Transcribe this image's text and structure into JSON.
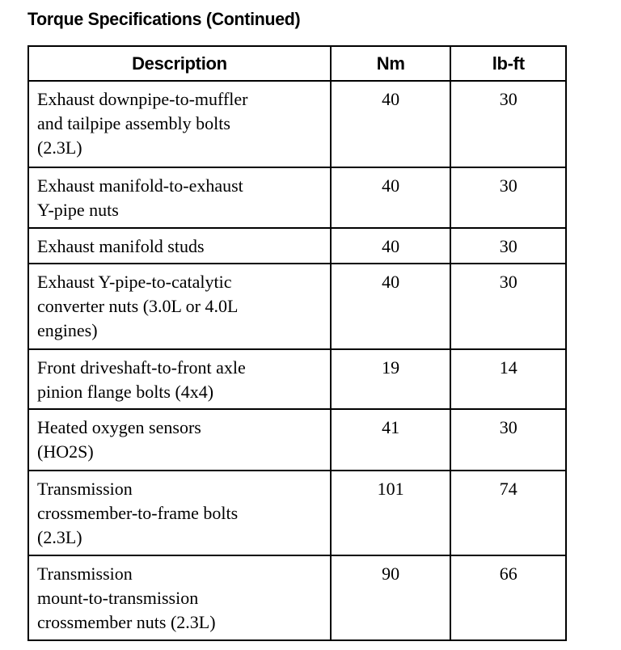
{
  "title": "Torque Specifications (Continued)",
  "table": {
    "headers": [
      "Description",
      "Nm",
      "lb-ft"
    ],
    "rows": [
      {
        "description": [
          "Exhaust downpipe-to-muffler",
          "and tailpipe assembly bolts",
          "(2.3L)"
        ],
        "nm": "40",
        "lbft": "30"
      },
      {
        "description": [
          "Exhaust manifold-to-exhaust",
          "Y-pipe nuts"
        ],
        "nm": "40",
        "lbft": "30"
      },
      {
        "description": [
          "Exhaust manifold studs"
        ],
        "nm": "40",
        "lbft": "30"
      },
      {
        "description": [
          "Exhaust Y-pipe-to-catalytic",
          "converter nuts (3.0L or 4.0L",
          "engines)"
        ],
        "nm": "40",
        "lbft": "30"
      },
      {
        "description": [
          "Front driveshaft-to-front axle",
          "pinion flange bolts (4x4)"
        ],
        "nm": "19",
        "lbft": "14"
      },
      {
        "description": [
          "Heated oxygen sensors",
          "(HO2S)"
        ],
        "nm": "41",
        "lbft": "30"
      },
      {
        "description": [
          "Transmission",
          "crossmember-to-frame bolts",
          "(2.3L)"
        ],
        "nm": "101",
        "lbft": "74"
      },
      {
        "description": [
          "Transmission",
          "mount-to-transmission",
          "crossmember nuts (2.3L)"
        ],
        "nm": "90",
        "lbft": "66"
      }
    ]
  }
}
